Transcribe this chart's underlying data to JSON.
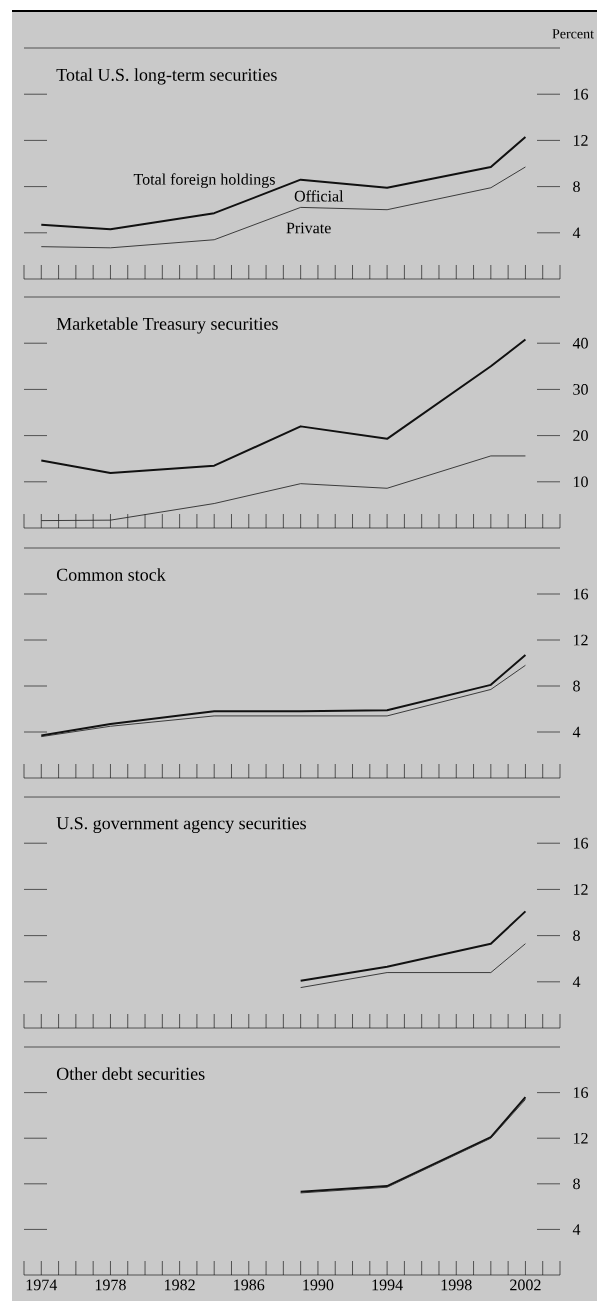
{
  "chart_data": [
    {
      "type": "line",
      "title": "Total U.S. long-term securities",
      "ylabel": "Percent",
      "annotations": [
        "Official"
      ],
      "x": [
        1974,
        1978,
        1984,
        1989,
        1994,
        2000,
        2002
      ],
      "series": [
        {
          "name": "Total foreign holdings",
          "color": "#111111",
          "values": [
            4.7,
            4.3,
            5.7,
            8.6,
            7.9,
            9.7,
            12.3
          ]
        },
        {
          "name": "Private",
          "color": "#2b2b2b",
          "values": [
            2.8,
            2.7,
            3.4,
            6.2,
            6.0,
            7.9,
            9.7
          ]
        }
      ],
      "xlim": [
        1973,
        2004
      ],
      "ylim": [
        0,
        20
      ],
      "yticks": [
        4,
        8,
        12,
        16
      ],
      "tick_labels": "y",
      "xticks": [
        {
          "value": 1973,
          "label": null
        },
        1974,
        {
          "value": 1975,
          "label": null
        },
        {
          "value": 1976,
          "label": null
        },
        {
          "value": 1977,
          "label": null
        },
        1978,
        {
          "value": 1979,
          "label": null
        },
        {
          "value": 1980,
          "label": null
        },
        {
          "value": 1981,
          "label": null
        },
        1982,
        {
          "value": 1983,
          "label": null
        },
        {
          "value": 1984,
          "label": null
        },
        {
          "value": 1985,
          "label": null
        },
        1986,
        {
          "value": 1987,
          "label": null
        },
        {
          "value": 1988,
          "label": null
        },
        {
          "value": 1989,
          "label": null
        },
        1990,
        {
          "value": 1991,
          "label": null
        },
        {
          "value": 1992,
          "label": null
        },
        {
          "value": 1993,
          "label": null
        },
        1994,
        {
          "value": 1995,
          "label": null
        },
        {
          "value": 1996,
          "label": null
        },
        {
          "value": 1997,
          "label": null
        },
        1998,
        {
          "value": 1999,
          "label": null
        },
        {
          "value": 2000,
          "label": null
        },
        {
          "value": 2001,
          "label": null
        },
        2002,
        {
          "value": 2003,
          "label": null
        },
        {
          "value": 2004,
          "label": null
        }
      ]
    },
    {
      "type": "line",
      "title": "Marketable Treasury securities",
      "x": [
        1974,
        1978,
        1984,
        1989,
        1994,
        2000,
        2002
      ],
      "series": [
        {
          "color": "#111111",
          "values": [
            14.6,
            11.9,
            13.5,
            22.0,
            19.3,
            35.0,
            40.8
          ]
        },
        {
          "color": "#2b2b2b",
          "values": [
            1.6,
            1.7,
            5.3,
            9.6,
            8.6,
            15.6,
            15.6
          ]
        }
      ],
      "xlim": [
        1973,
        2004
      ],
      "ylim": [
        0,
        50
      ],
      "yticks": [
        10,
        20,
        30,
        40
      ],
      "tick_labels": "y",
      "xticks": [
        {
          "value": 1973,
          "label": null
        },
        1974,
        {
          "value": 1975,
          "label": null
        },
        {
          "value": 1976,
          "label": null
        },
        {
          "value": 1977,
          "label": null
        },
        1978,
        {
          "value": 1979,
          "label": null
        },
        {
          "value": 1980,
          "label": null
        },
        {
          "value": 1981,
          "label": null
        },
        1982,
        {
          "value": 1983,
          "label": null
        },
        {
          "value": 1984,
          "label": null
        },
        {
          "value": 1985,
          "label": null
        },
        1986,
        {
          "value": 1987,
          "label": null
        },
        {
          "value": 1988,
          "label": null
        },
        {
          "value": 1989,
          "label": null
        },
        1990,
        {
          "value": 1991,
          "label": null
        },
        {
          "value": 1992,
          "label": null
        },
        {
          "value": 1993,
          "label": null
        },
        1994,
        {
          "value": 1995,
          "label": null
        },
        {
          "value": 1996,
          "label": null
        },
        {
          "value": 1997,
          "label": null
        },
        1998,
        {
          "value": 1999,
          "label": null
        },
        {
          "value": 2000,
          "label": null
        },
        {
          "value": 2001,
          "label": null
        },
        2002,
        {
          "value": 2003,
          "label": null
        },
        {
          "value": 2004,
          "label": null
        }
      ]
    },
    {
      "type": "line",
      "title": "Common stock",
      "x": [
        1974,
        1978,
        1984,
        1989,
        1994,
        2000,
        2002
      ],
      "series": [
        {
          "color": "#111111",
          "values": [
            3.7,
            4.7,
            5.8,
            5.8,
            5.9,
            8.1,
            10.7
          ]
        },
        {
          "color": "#2b2b2b",
          "values": [
            3.6,
            4.5,
            5.4,
            5.4,
            5.4,
            7.7,
            9.8
          ]
        }
      ],
      "xlim": [
        1973,
        2004
      ],
      "ylim": [
        0,
        20
      ],
      "yticks": [
        4,
        8,
        12,
        16
      ],
      "tick_labels": "y",
      "xticks": [
        {
          "value": 1973,
          "label": null
        },
        1974,
        {
          "value": 1975,
          "label": null
        },
        {
          "value": 1976,
          "label": null
        },
        {
          "value": 1977,
          "label": null
        },
        1978,
        {
          "value": 1979,
          "label": null
        },
        {
          "value": 1980,
          "label": null
        },
        {
          "value": 1981,
          "label": null
        },
        1982,
        {
          "value": 1983,
          "label": null
        },
        {
          "value": 1984,
          "label": null
        },
        {
          "value": 1985,
          "label": null
        },
        1986,
        {
          "value": 1987,
          "label": null
        },
        {
          "value": 1988,
          "label": null
        },
        {
          "value": 1989,
          "label": null
        },
        1990,
        {
          "value": 1991,
          "label": null
        },
        {
          "value": 1992,
          "label": null
        },
        {
          "value": 1993,
          "label": null
        },
        1994,
        {
          "value": 1995,
          "label": null
        },
        {
          "value": 1996,
          "label": null
        },
        {
          "value": 1997,
          "label": null
        },
        1998,
        {
          "value": 1999,
          "label": null
        },
        {
          "value": 2000,
          "label": null
        },
        {
          "value": 2001,
          "label": null
        },
        2002,
        {
          "value": 2003,
          "label": null
        },
        {
          "value": 2004,
          "label": null
        }
      ]
    },
    {
      "type": "line",
      "title": "U.S. government agency securities",
      "x": [
        1989,
        1994,
        2000,
        2002
      ],
      "series": [
        {
          "color": "#111111",
          "values": [
            4.1,
            5.3,
            7.3,
            10.1
          ]
        },
        {
          "color": "#2b2b2b",
          "values": [
            3.5,
            4.8,
            4.8,
            7.3
          ]
        }
      ],
      "xlim": [
        1973,
        2004
      ],
      "ylim": [
        0,
        20
      ],
      "yticks": [
        4,
        8,
        12,
        16
      ],
      "tick_labels": "y",
      "xticks": [
        {
          "value": 1973,
          "label": null
        },
        1974,
        {
          "value": 1975,
          "label": null
        },
        {
          "value": 1976,
          "label": null
        },
        {
          "value": 1977,
          "label": null
        },
        1978,
        {
          "value": 1979,
          "label": null
        },
        {
          "value": 1980,
          "label": null
        },
        {
          "value": 1981,
          "label": null
        },
        1982,
        {
          "value": 1983,
          "label": null
        },
        {
          "value": 1984,
          "label": null
        },
        {
          "value": 1985,
          "label": null
        },
        1986,
        {
          "value": 1987,
          "label": null
        },
        {
          "value": 1988,
          "label": null
        },
        {
          "value": 1989,
          "label": null
        },
        1990,
        {
          "value": 1991,
          "label": null
        },
        {
          "value": 1992,
          "label": null
        },
        {
          "value": 1993,
          "label": null
        },
        1994,
        {
          "value": 1995,
          "label": null
        },
        {
          "value": 1996,
          "label": null
        },
        {
          "value": 1997,
          "label": null
        },
        1998,
        {
          "value": 1999,
          "label": null
        },
        {
          "value": 2000,
          "label": null
        },
        {
          "value": 2001,
          "label": null
        },
        2002,
        {
          "value": 2003,
          "label": null
        },
        {
          "value": 2004,
          "label": null
        }
      ]
    },
    {
      "type": "line",
      "title": "Other debt securities",
      "x": [
        1989,
        1994,
        2000,
        2002
      ],
      "series": [
        {
          "color": "#111111",
          "values": [
            7.3,
            7.8,
            12.1,
            15.6
          ]
        },
        {
          "color": "#2b2b2b",
          "values": [
            7.2,
            7.7,
            12.0,
            15.4
          ]
        }
      ],
      "xlim": [
        1973,
        2004
      ],
      "ylim": [
        0,
        20
      ],
      "yticks": [
        4,
        8,
        12,
        16
      ],
      "xticks": [
        {
          "value": 1973,
          "label": null
        },
        1974,
        {
          "value": 1975,
          "label": null
        },
        {
          "value": 1976,
          "label": null
        },
        {
          "value": 1977,
          "label": null
        },
        1978,
        {
          "value": 1979,
          "label": null
        },
        {
          "value": 1980,
          "label": null
        },
        {
          "value": 1981,
          "label": null
        },
        1982,
        {
          "value": 1983,
          "label": null
        },
        {
          "value": 1984,
          "label": null
        },
        {
          "value": 1985,
          "label": null
        },
        1986,
        {
          "value": 1987,
          "label": null
        },
        {
          "value": 1988,
          "label": null
        },
        {
          "value": 1989,
          "label": null
        },
        1990,
        {
          "value": 1991,
          "label": null
        },
        {
          "value": 1992,
          "label": null
        },
        {
          "value": 1993,
          "label": null
        },
        1994,
        {
          "value": 1995,
          "label": null
        },
        {
          "value": 1996,
          "label": null
        },
        {
          "value": 1997,
          "label": null
        },
        1998,
        {
          "value": 1999,
          "label": null
        },
        {
          "value": 2000,
          "label": null
        },
        {
          "value": 2001,
          "label": null
        },
        2002,
        {
          "value": 2003,
          "label": null
        },
        {
          "value": 2004,
          "label": null
        }
      ]
    }
  ]
}
